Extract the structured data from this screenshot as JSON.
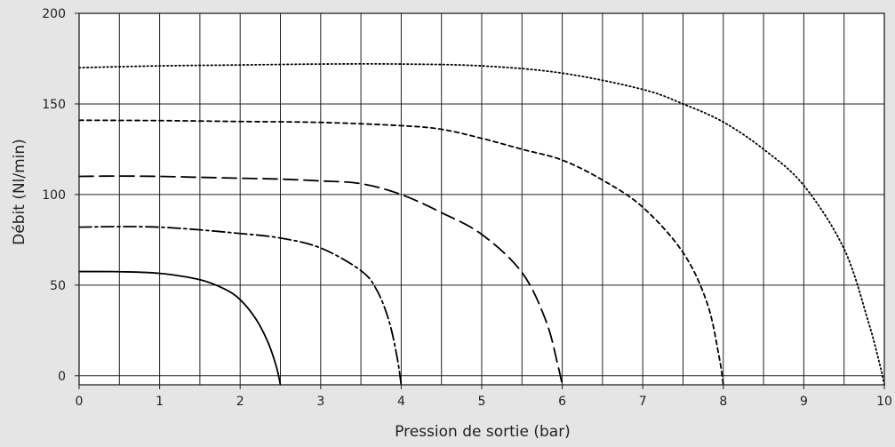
{
  "chart_data": {
    "type": "line",
    "title": "",
    "xlabel": "Pression de sortie (bar)",
    "ylabel": "Débit (Nl/min)",
    "xlim": [
      0,
      10
    ],
    "ylim": [
      -5,
      200
    ],
    "x_ticks": [
      0,
      1,
      2,
      3,
      4,
      5,
      6,
      7,
      8,
      9,
      10
    ],
    "x_tick_labels": [
      "0",
      "1",
      "2",
      "3",
      "4",
      "5",
      "6",
      "7",
      "8",
      "9",
      "10"
    ],
    "y_ticks": [
      0,
      50,
      100,
      150,
      200
    ],
    "y_tick_labels": [
      "0",
      "50",
      "100",
      "150",
      "200"
    ],
    "x_gridlines": [
      0,
      0.5,
      1,
      1.5,
      2,
      2.5,
      3,
      3.5,
      4,
      4.5,
      5,
      5.5,
      6,
      6.5,
      7,
      7.5,
      8,
      8.5,
      9,
      9.5,
      10
    ],
    "y_gridlines": [
      0,
      50,
      100,
      150,
      200
    ],
    "grid": true,
    "legend": "none",
    "background_color": "#e5e5e5",
    "plot_background_color": "#ffffff",
    "line_color": "#000000",
    "series": [
      {
        "style": "solid",
        "points": [
          [
            0,
            57.5
          ],
          [
            0.5,
            57.4
          ],
          [
            1,
            56.5
          ],
          [
            1.5,
            53
          ],
          [
            1.8,
            48
          ],
          [
            2,
            42
          ],
          [
            2.2,
            31
          ],
          [
            2.35,
            18
          ],
          [
            2.45,
            5
          ],
          [
            2.5,
            -5
          ]
        ]
      },
      {
        "style": "dashdot",
        "points": [
          [
            0,
            82
          ],
          [
            0.5,
            82.3
          ],
          [
            1,
            82
          ],
          [
            1.5,
            80.5
          ],
          [
            2,
            78.5
          ],
          [
            2.5,
            76
          ],
          [
            3,
            70.5
          ],
          [
            3.5,
            58
          ],
          [
            3.7,
            47
          ],
          [
            3.85,
            30
          ],
          [
            3.95,
            10
          ],
          [
            4,
            -5
          ]
        ]
      },
      {
        "style": "longdash",
        "points": [
          [
            0,
            110
          ],
          [
            0.5,
            110.2
          ],
          [
            1,
            110
          ],
          [
            1.5,
            109.5
          ],
          [
            2,
            109
          ],
          [
            2.5,
            108.5
          ],
          [
            3,
            107.5
          ],
          [
            3.5,
            106
          ],
          [
            4,
            100
          ],
          [
            4.5,
            90
          ],
          [
            5,
            78
          ],
          [
            5.5,
            57
          ],
          [
            5.8,
            30
          ],
          [
            5.95,
            5
          ],
          [
            6,
            -5
          ]
        ]
      },
      {
        "style": "shortdash",
        "points": [
          [
            0,
            141
          ],
          [
            1,
            140.8
          ],
          [
            2,
            140.3
          ],
          [
            3,
            139.8
          ],
          [
            4,
            138
          ],
          [
            4.5,
            136
          ],
          [
            5,
            131
          ],
          [
            5.5,
            125
          ],
          [
            6,
            119
          ],
          [
            6.5,
            108
          ],
          [
            7,
            93
          ],
          [
            7.5,
            68
          ],
          [
            7.8,
            40
          ],
          [
            7.95,
            10
          ],
          [
            8,
            -5
          ]
        ]
      },
      {
        "style": "dotted",
        "points": [
          [
            0,
            170
          ],
          [
            1,
            171
          ],
          [
            2,
            171.5
          ],
          [
            3,
            172
          ],
          [
            4,
            172
          ],
          [
            5,
            171
          ],
          [
            6,
            167
          ],
          [
            7,
            158
          ],
          [
            7.5,
            150
          ],
          [
            8,
            140
          ],
          [
            8.5,
            125
          ],
          [
            9,
            105
          ],
          [
            9.5,
            70
          ],
          [
            9.8,
            30
          ],
          [
            9.95,
            5
          ],
          [
            10,
            -5
          ]
        ]
      }
    ]
  }
}
